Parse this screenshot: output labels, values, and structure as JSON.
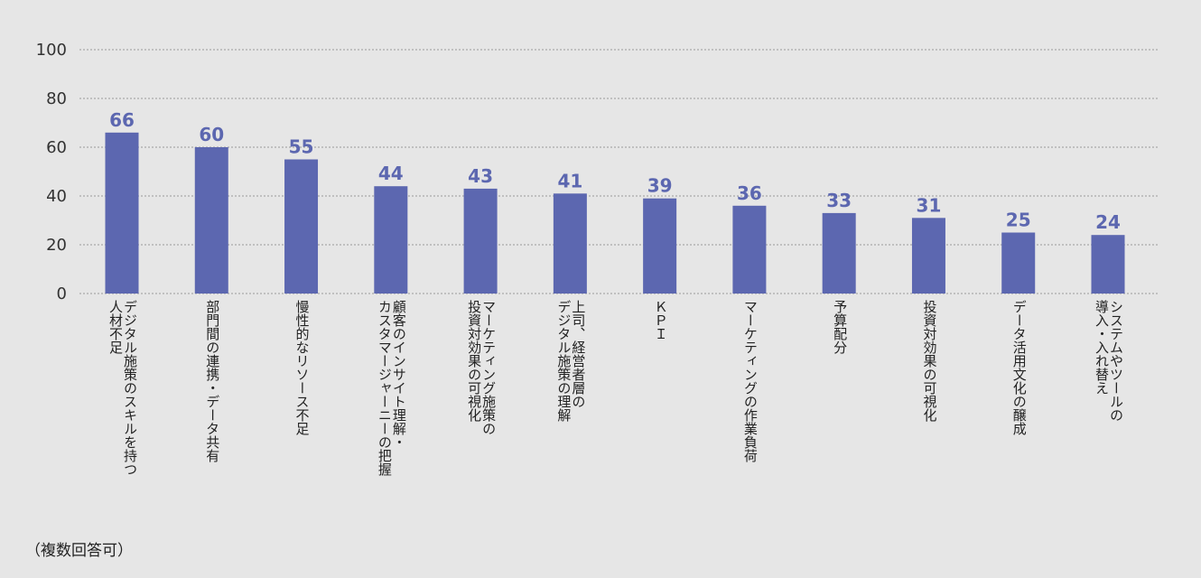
{
  "chart_data": {
    "type": "bar",
    "categories": [
      "デジタル施策のスキルを持つ\n人材不足",
      "部門間の連携・データ共有",
      "慢性的なリソース不足",
      "顧客のインサイト理解・\nカスタマージャーニーの把握",
      "マーケティング施策の\n投資対効果の可視化",
      "上司、経営者層の\nデジタル施策の理解",
      "ＫＰＩ",
      "マーケティングの作業負荷",
      "予算配分",
      "投資対効果の可視化",
      "データ活用文化の醸成",
      "システムやツールの\n導入・入れ替え"
    ],
    "values": [
      66,
      60,
      55,
      44,
      43,
      41,
      39,
      36,
      33,
      31,
      25,
      24
    ],
    "ylim": [
      0,
      100
    ],
    "yticks": [
      0,
      20,
      40,
      60,
      80,
      100
    ],
    "grid": true,
    "colors": {
      "bar": "#5c67b0",
      "label": "#5c67b0",
      "grid": "#9a9a9a"
    }
  },
  "note": "（複数回答可）"
}
